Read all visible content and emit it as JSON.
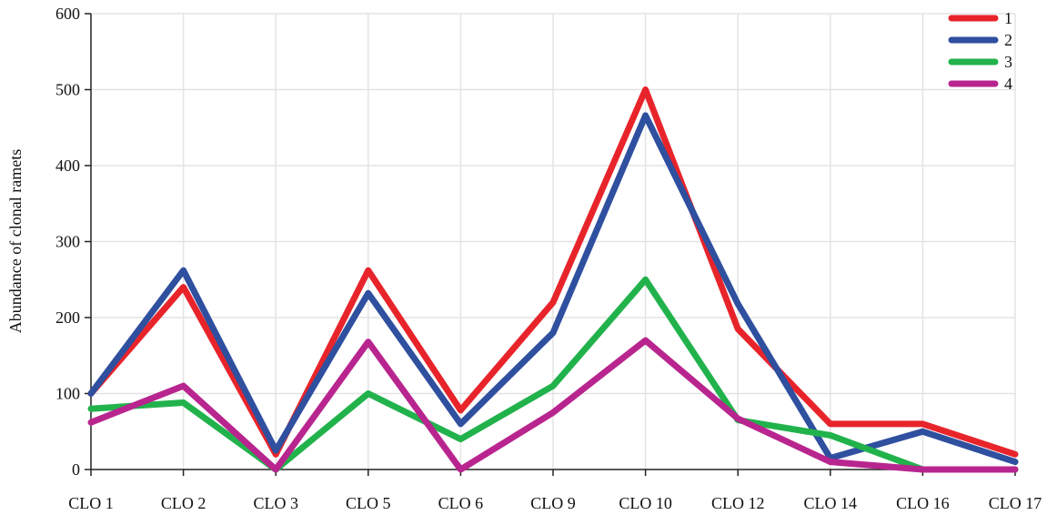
{
  "chart_data": {
    "type": "line",
    "title": "",
    "xlabel": "",
    "ylabel": "Abundance of clonal ramets",
    "ylim": [
      0,
      600
    ],
    "yticks": [
      0,
      100,
      200,
      300,
      400,
      500,
      600
    ],
    "grid": true,
    "legend_position": "top-right",
    "categories": [
      "CLO 1",
      "CLO 2",
      "CLO 3",
      "CLO 5",
      "CLO 6",
      "CLO 9",
      "CLO 10",
      "CLO 12",
      "CLO 14",
      "CLO 16",
      "CLO 17"
    ],
    "series": [
      {
        "name": "1",
        "color": "#e8242b",
        "values": [
          100,
          240,
          20,
          262,
          78,
          220,
          500,
          185,
          60,
          60,
          20
        ]
      },
      {
        "name": "2",
        "color": "#2f4f9f",
        "values": [
          100,
          262,
          25,
          232,
          60,
          180,
          466,
          218,
          15,
          50,
          10
        ]
      },
      {
        "name": "3",
        "color": "#22b24c",
        "values": [
          80,
          88,
          0,
          100,
          40,
          110,
          250,
          65,
          45,
          0,
          0
        ]
      },
      {
        "name": "4",
        "color": "#b8258f",
        "values": [
          62,
          110,
          0,
          168,
          0,
          75,
          170,
          67,
          10,
          0,
          0
        ]
      }
    ]
  }
}
